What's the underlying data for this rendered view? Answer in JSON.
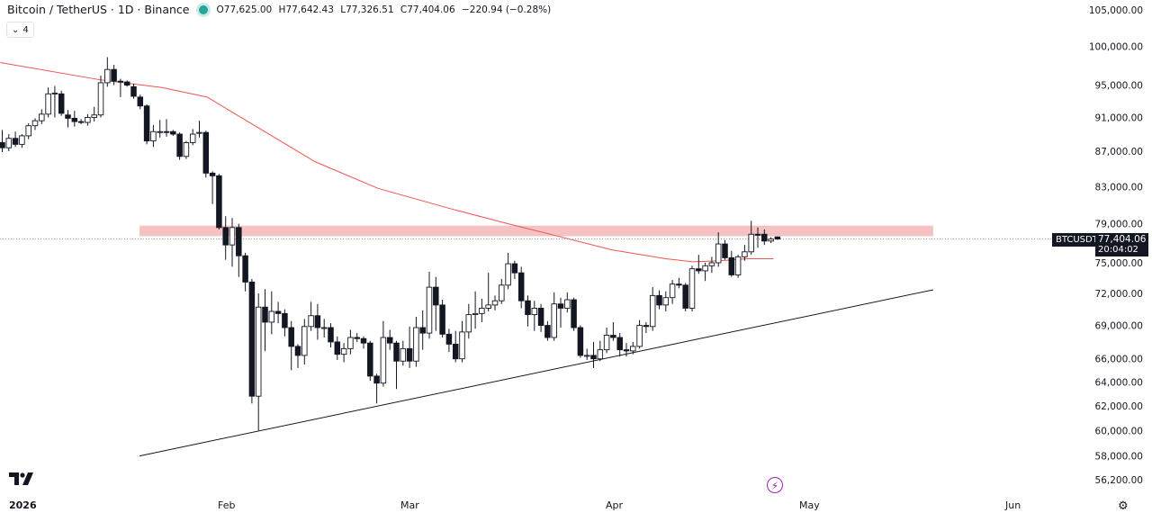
{
  "header": {
    "title": "Bitcoin / TetherUS · 1D · Binance",
    "open": "O77,625.00",
    "high": "H77,642.43",
    "low": "L77,326.51",
    "close": "C77,404.06",
    "change": "−220.94 (−0.28%)",
    "indicators_toggle": "4",
    "status_color": "#26a69a"
  },
  "price_axis": {
    "labels": [
      "105,000.00",
      "100,000.00",
      "95,000.00",
      "91,000.00",
      "87,000.00",
      "83,000.00",
      "79,000.00",
      "75,000.00",
      "72,000.00",
      "69,000.00",
      "66,000.00",
      "64,000.00",
      "62,000.00",
      "60,000.00",
      "58,000.00",
      "56,200.00"
    ],
    "symbol": "BTCUSDT",
    "last_price": "77,404.06",
    "countdown": "20:04:02"
  },
  "time_axis": {
    "year": "2026",
    "months": [
      "Feb",
      "Mar",
      "Apr",
      "May",
      "Jun"
    ]
  },
  "chart_data": {
    "type": "candlestick",
    "title": "Bitcoin / TetherUS · 1D · Binance",
    "unit": "price in thousands USDT",
    "scale": "log",
    "ylim": [
      56.2,
      105.0
    ],
    "candles_ohlc": [
      [
        88.0,
        89.5,
        86.9,
        87.4
      ],
      [
        87.4,
        89.0,
        87.0,
        88.5
      ],
      [
        88.5,
        89.3,
        87.5,
        87.8
      ],
      [
        87.8,
        89.0,
        87.4,
        88.8
      ],
      [
        88.8,
        90.3,
        88.4,
        90.0
      ],
      [
        90.0,
        90.9,
        89.5,
        90.6
      ],
      [
        90.6,
        92.0,
        90.2,
        91.4
      ],
      [
        91.4,
        94.7,
        91.0,
        93.9
      ],
      [
        93.9,
        94.9,
        91.0,
        94.0
      ],
      [
        93.9,
        94.3,
        91.2,
        91.5
      ],
      [
        91.3,
        91.9,
        89.8,
        90.9
      ],
      [
        90.9,
        91.8,
        89.9,
        90.5
      ],
      [
        90.5,
        90.8,
        90.2,
        90.4
      ],
      [
        90.4,
        91.4,
        90.0,
        91.0
      ],
      [
        91.0,
        92.3,
        90.5,
        91.3
      ],
      [
        91.3,
        96.2,
        91.0,
        95.3
      ],
      [
        95.3,
        98.6,
        94.8,
        97.0
      ],
      [
        97.0,
        97.6,
        95.0,
        95.5
      ],
      [
        95.5,
        95.8,
        93.5,
        95.4
      ],
      [
        95.4,
        95.6,
        94.8,
        95.0
      ],
      [
        94.8,
        95.2,
        93.3,
        93.6
      ],
      [
        93.5,
        93.8,
        92.0,
        92.4
      ],
      [
        92.4,
        92.6,
        87.8,
        88.2
      ],
      [
        88.2,
        90.1,
        87.5,
        89.3
      ],
      [
        89.3,
        90.7,
        88.6,
        89.3
      ],
      [
        89.3,
        90.8,
        88.7,
        89.2
      ],
      [
        89.3,
        89.5,
        88.8,
        89.0
      ],
      [
        89.0,
        89.2,
        86.0,
        86.4
      ],
      [
        86.4,
        88.2,
        86.1,
        88.0
      ],
      [
        88.0,
        89.6,
        87.7,
        89.0
      ],
      [
        89.1,
        90.6,
        88.6,
        89.2
      ],
      [
        89.2,
        89.4,
        84.0,
        84.5
      ],
      [
        84.5,
        84.7,
        81.1,
        84.2
      ],
      [
        84.2,
        84.4,
        78.4,
        78.6
      ],
      [
        78.6,
        79.8,
        75.3,
        76.8
      ],
      [
        76.8,
        79.6,
        74.6,
        78.6
      ],
      [
        78.6,
        79.0,
        73.6,
        75.7
      ],
      [
        75.7,
        76.0,
        72.2,
        73.1
      ],
      [
        73.1,
        73.4,
        62.2,
        62.8
      ],
      [
        62.8,
        72.0,
        60.0,
        70.7
      ],
      [
        70.7,
        72.4,
        66.7,
        69.3
      ],
      [
        69.3,
        72.2,
        68.2,
        70.3
      ],
      [
        70.3,
        71.2,
        69.2,
        70.1
      ],
      [
        70.1,
        70.5,
        68.0,
        68.8
      ],
      [
        68.8,
        69.4,
        65.0,
        67.1
      ],
      [
        67.1,
        67.3,
        65.2,
        66.3
      ],
      [
        66.3,
        69.6,
        65.5,
        68.9
      ],
      [
        68.9,
        71.2,
        68.5,
        69.9
      ],
      [
        69.9,
        71.0,
        67.7,
        68.8
      ],
      [
        68.8,
        69.6,
        67.9,
        68.8
      ],
      [
        68.8,
        69.2,
        67.0,
        67.5
      ],
      [
        67.5,
        68.0,
        65.9,
        66.4
      ],
      [
        66.4,
        67.4,
        65.7,
        66.9
      ],
      [
        66.9,
        68.6,
        66.4,
        67.9
      ],
      [
        67.9,
        68.3,
        67.5,
        67.8
      ],
      [
        67.8,
        68.0,
        66.9,
        67.4
      ],
      [
        67.4,
        67.6,
        64.1,
        64.5
      ],
      [
        64.5,
        64.7,
        62.2,
        63.9
      ],
      [
        63.9,
        69.4,
        63.6,
        67.9
      ],
      [
        67.9,
        68.6,
        66.8,
        67.4
      ],
      [
        67.4,
        67.6,
        63.4,
        65.8
      ],
      [
        65.8,
        67.6,
        65.4,
        66.9
      ],
      [
        66.9,
        68.9,
        65.2,
        65.8
      ],
      [
        65.8,
        69.8,
        65.3,
        68.8
      ],
      [
        68.8,
        70.4,
        66.8,
        68.3
      ],
      [
        68.3,
        74.1,
        67.8,
        72.6
      ],
      [
        72.6,
        73.6,
        68.5,
        70.9
      ],
      [
        70.9,
        71.4,
        67.9,
        68.2
      ],
      [
        68.2,
        68.7,
        66.6,
        67.3
      ],
      [
        67.3,
        68.5,
        65.7,
        66.0
      ],
      [
        66.0,
        69.4,
        65.7,
        68.4
      ],
      [
        68.4,
        71.0,
        67.8,
        70.0
      ],
      [
        70.0,
        72.2,
        68.7,
        70.1
      ],
      [
        70.1,
        71.5,
        69.3,
        70.6
      ],
      [
        70.6,
        74.0,
        70.3,
        70.9
      ],
      [
        70.9,
        71.8,
        70.4,
        71.3
      ],
      [
        71.3,
        73.4,
        71.0,
        72.8
      ],
      [
        72.8,
        76.0,
        72.4,
        74.9
      ],
      [
        74.9,
        75.2,
        73.4,
        74.0
      ],
      [
        74.0,
        74.6,
        70.6,
        71.3
      ],
      [
        71.3,
        71.8,
        68.9,
        70.0
      ],
      [
        70.0,
        71.3,
        68.5,
        70.6
      ],
      [
        70.6,
        71.0,
        68.4,
        69.0
      ],
      [
        69.0,
        69.4,
        67.6,
        67.9
      ],
      [
        67.9,
        72.1,
        67.6,
        71.0
      ],
      [
        71.0,
        71.6,
        68.8,
        70.6
      ],
      [
        70.6,
        72.1,
        70.2,
        71.4
      ],
      [
        71.4,
        71.6,
        68.5,
        68.8
      ],
      [
        68.8,
        69.0,
        66.1,
        66.3
      ],
      [
        66.3,
        66.9,
        65.9,
        66.3
      ],
      [
        66.3,
        67.5,
        65.2,
        66.0
      ],
      [
        66.0,
        67.6,
        65.8,
        66.8
      ],
      [
        66.8,
        68.8,
        66.5,
        68.1
      ],
      [
        68.1,
        69.3,
        67.6,
        67.9
      ],
      [
        67.9,
        68.3,
        66.2,
        66.8
      ],
      [
        66.8,
        67.4,
        66.2,
        66.7
      ],
      [
        66.7,
        67.5,
        66.4,
        67.1
      ],
      [
        67.1,
        69.5,
        66.9,
        69.0
      ],
      [
        69.0,
        69.3,
        68.3,
        68.9
      ],
      [
        68.9,
        72.6,
        68.5,
        71.8
      ],
      [
        71.8,
        72.3,
        70.5,
        70.9
      ],
      [
        70.9,
        72.2,
        70.3,
        71.6
      ],
      [
        71.6,
        73.3,
        71.0,
        72.9
      ],
      [
        72.9,
        73.5,
        72.5,
        72.8
      ],
      [
        72.8,
        73.0,
        70.3,
        70.6
      ],
      [
        70.6,
        74.7,
        70.3,
        74.4
      ],
      [
        74.4,
        75.8,
        73.9,
        74.2
      ],
      [
        74.2,
        75.0,
        73.2,
        74.7
      ],
      [
        74.7,
        75.6,
        74.0,
        75.0
      ],
      [
        75.0,
        78.1,
        74.6,
        76.9
      ],
      [
        76.9,
        77.3,
        75.3,
        75.5
      ],
      [
        75.5,
        76.2,
        73.6,
        73.8
      ],
      [
        73.8,
        75.8,
        73.5,
        75.6
      ],
      [
        75.6,
        76.8,
        75.2,
        76.1
      ],
      [
        76.1,
        79.3,
        75.8,
        77.9
      ],
      [
        77.9,
        78.6,
        76.5,
        77.8
      ],
      [
        77.9,
        78.4,
        76.8,
        77.2
      ],
      [
        77.2,
        77.6,
        77.0,
        77.4
      ],
      [
        77.625,
        77.642,
        77.327,
        77.404
      ]
    ],
    "moving_average": {
      "color": "#ef5350",
      "points_index_price": [
        [
          -0.3,
          97.9
        ],
        [
          14.7,
          95.7
        ],
        [
          24.3,
          94.7
        ],
        [
          31.2,
          93.5
        ],
        [
          35.3,
          91.5
        ],
        [
          40.8,
          88.9
        ],
        [
          47.6,
          85.8
        ],
        [
          57.2,
          82.8
        ],
        [
          68.2,
          80.6
        ],
        [
          76.4,
          79.1
        ],
        [
          84.6,
          77.7
        ],
        [
          92.8,
          76.3
        ],
        [
          101,
          75.4
        ],
        [
          105,
          75.1
        ],
        [
          109.2,
          75.2
        ],
        [
          113.3,
          75.4
        ],
        [
          117.4,
          75.4
        ]
      ]
    },
    "resistance_zone": {
      "from_index": 20.9,
      "to_index": 141.7,
      "price_range": [
        77.7,
        78.8
      ],
      "color": "#f4c2c2"
    },
    "trendline": {
      "from": [
        20.9,
        58.0
      ],
      "to": [
        141.7,
        72.35
      ]
    },
    "last_price_line": 77.404
  }
}
